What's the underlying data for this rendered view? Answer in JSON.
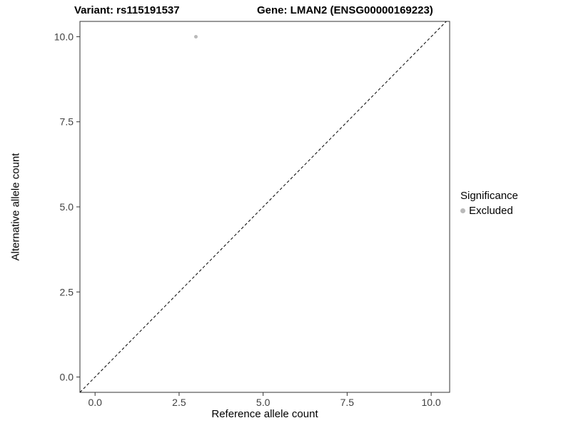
{
  "figure": {
    "background": "#ffffff"
  },
  "chart_data": {
    "type": "scatter",
    "title_left": "Variant: rs115191537",
    "title_right": "Gene: LMAN2 (ENSG00000169223)",
    "xlabel": "Reference allele count",
    "ylabel": "Alternative allele count",
    "xlim": [
      -0.45,
      10.55
    ],
    "ylim": [
      -0.45,
      10.45
    ],
    "xticks": [
      0,
      2.5,
      5,
      7.5,
      10
    ],
    "xtick_labels": [
      "0.0",
      "2.5",
      "5.0",
      "7.5",
      "10.0"
    ],
    "yticks": [
      0,
      2.5,
      5,
      7.5,
      10
    ],
    "ytick_labels": [
      "0.0",
      "2.5",
      "5.0",
      "7.5",
      "10.0"
    ],
    "grid": false,
    "panel_border_color": "#333333",
    "tick_color": "#333333",
    "identity_line": {
      "slope": 1,
      "intercept": 0,
      "dashed": true,
      "color": "#000000"
    },
    "points": [
      {
        "x": 3,
        "y": 10,
        "series": "Excluded",
        "color": "#b9b9b9",
        "radius": 2.5
      }
    ],
    "legend": {
      "title": "Significance",
      "position": "right",
      "entries": [
        {
          "label": "Excluded",
          "color": "#b9b9b9"
        }
      ]
    }
  }
}
